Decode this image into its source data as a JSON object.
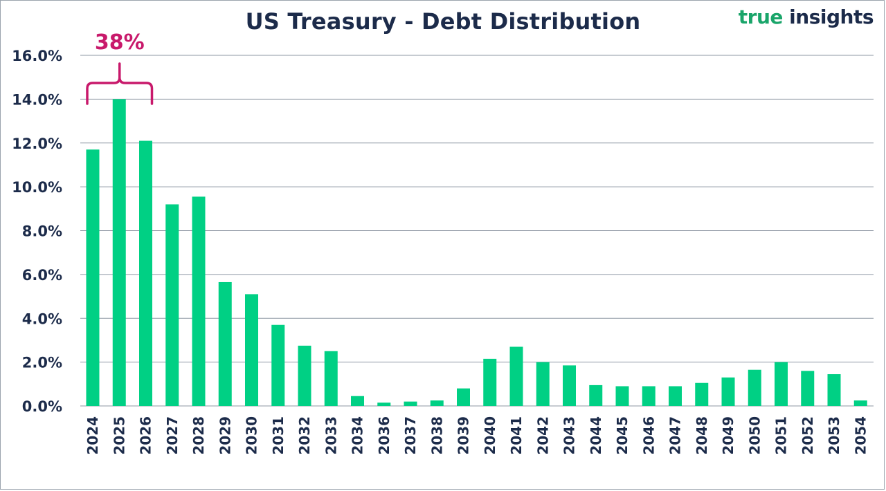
{
  "title": "US Treasury - Debt Distribution",
  "logo": {
    "word1": "true",
    "word2": "insights"
  },
  "colors": {
    "bar": "#00d084",
    "text": "#1c2b4a",
    "grid": "#8e97a3",
    "annotation": "#c8196b",
    "logo_green": "#1aa56a"
  },
  "chart_data": {
    "type": "bar",
    "title": "US Treasury - Debt Distribution",
    "xlabel": "",
    "ylabel": "",
    "categories": [
      "2024",
      "2025",
      "2026",
      "2027",
      "2028",
      "2029",
      "2030",
      "2031",
      "2032",
      "2033",
      "2034",
      "2036",
      "2037",
      "2038",
      "2039",
      "2040",
      "2041",
      "2042",
      "2043",
      "2044",
      "2045",
      "2046",
      "2047",
      "2048",
      "2049",
      "2050",
      "2051",
      "2052",
      "2053",
      "2054"
    ],
    "values": [
      11.7,
      14.0,
      12.1,
      9.2,
      9.55,
      5.65,
      5.1,
      3.7,
      2.75,
      2.5,
      0.45,
      0.15,
      0.2,
      0.25,
      0.8,
      2.15,
      2.7,
      2.0,
      1.85,
      0.95,
      0.9,
      0.9,
      0.9,
      1.05,
      1.3,
      1.65,
      2.0,
      1.6,
      1.45,
      0.25
    ],
    "ylim": [
      0,
      16
    ],
    "yticks": [
      0,
      2,
      4,
      6,
      8,
      10,
      12,
      14,
      16
    ],
    "ytick_labels": [
      "0.0%",
      "2.0%",
      "4.0%",
      "6.0%",
      "8.0%",
      "10.0%",
      "12.0%",
      "14.0%",
      "16.0%"
    ],
    "grid": true,
    "annotation": {
      "text": "38%",
      "bracket_categories": [
        "2024",
        "2025",
        "2026"
      ]
    }
  }
}
